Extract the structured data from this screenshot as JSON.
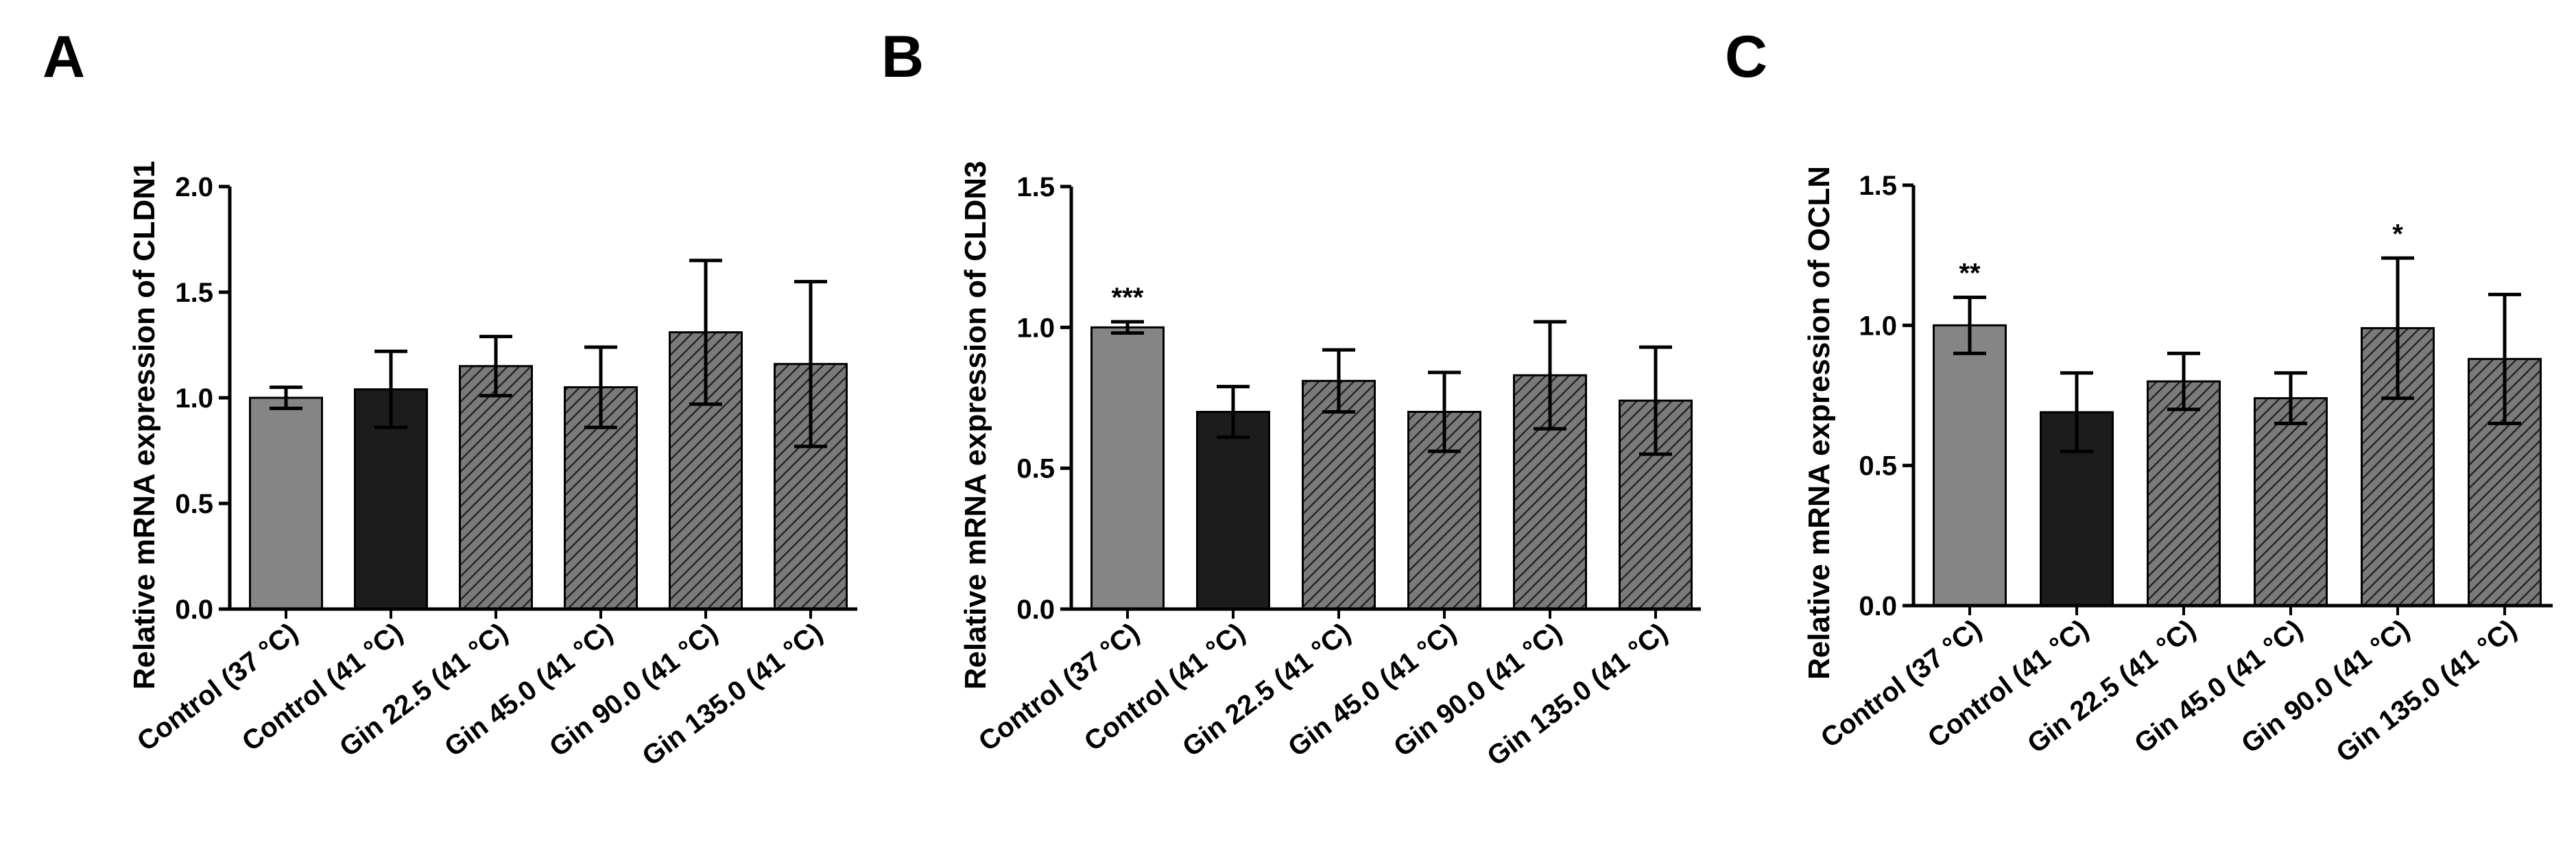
{
  "figure": {
    "panels": [
      "A",
      "B",
      "C"
    ]
  },
  "colors": {
    "control37": "#858585",
    "control41": "#1c1c1c",
    "hatch_bg": "#7a7a7a",
    "hatch_line": "#1e1e1e",
    "axis": "#000000"
  },
  "chart_data": [
    {
      "type": "bar",
      "panel": "A",
      "ylabel": "Relative mRNA expression of CLDN1",
      "ylim": [
        0,
        2.0
      ],
      "yticks": [
        "0.0",
        "0.5",
        "1.0",
        "1.5",
        "2.0"
      ],
      "categories": [
        "Control (37 °C)",
        "Control (41 °C)",
        "Gin 22.5 (41 °C)",
        "Gin 45.0 (41 °C)",
        "Gin 90.0 (41 °C)",
        "Gin 135.0 (41 °C)"
      ],
      "values": [
        1.0,
        1.04,
        1.15,
        1.05,
        1.31,
        1.16
      ],
      "errors": [
        0.05,
        0.18,
        0.14,
        0.19,
        0.34,
        0.39
      ],
      "styles": [
        "control37",
        "control41",
        "hatch",
        "hatch",
        "hatch",
        "hatch"
      ],
      "significance": [
        "",
        "",
        "",
        "",
        "",
        ""
      ]
    },
    {
      "type": "bar",
      "panel": "B",
      "ylabel": "Relative mRNA expression of CLDN3",
      "ylim": [
        0,
        1.5
      ],
      "yticks": [
        "0.0",
        "0.5",
        "1.0",
        "1.5"
      ],
      "categories": [
        "Control (37 °C)",
        "Control (41 °C)",
        "Gin 22.5 (41 °C)",
        "Gin 45.0 (41 °C)",
        "Gin 90.0 (41 °C)",
        "Gin 135.0 (41 °C)"
      ],
      "values": [
        1.0,
        0.7,
        0.81,
        0.7,
        0.83,
        0.74
      ],
      "errors": [
        0.02,
        0.09,
        0.11,
        0.14,
        0.19,
        0.19
      ],
      "styles": [
        "control37",
        "control41",
        "hatch",
        "hatch",
        "hatch",
        "hatch"
      ],
      "significance": [
        "***",
        "",
        "",
        "",
        "",
        ""
      ]
    },
    {
      "type": "bar",
      "panel": "C",
      "ylabel": "Relative mRNA expression of OCLN",
      "ylim": [
        0,
        1.5
      ],
      "yticks": [
        "0.0",
        "0.5",
        "1.0",
        "1.5"
      ],
      "categories": [
        "Control (37 °C)",
        "Control (41 °C)",
        "Gin 22.5 (41 °C)",
        "Gin 45.0 (41 °C)",
        "Gin 90.0 (41 °C)",
        "Gin 135.0 (41 °C)"
      ],
      "values": [
        1.0,
        0.69,
        0.8,
        0.74,
        0.99,
        0.88
      ],
      "errors": [
        0.1,
        0.14,
        0.1,
        0.09,
        0.25,
        0.23
      ],
      "styles": [
        "control37",
        "control41",
        "hatch",
        "hatch",
        "hatch",
        "hatch"
      ],
      "significance": [
        "**",
        "",
        "",
        "",
        "*",
        ""
      ]
    }
  ]
}
